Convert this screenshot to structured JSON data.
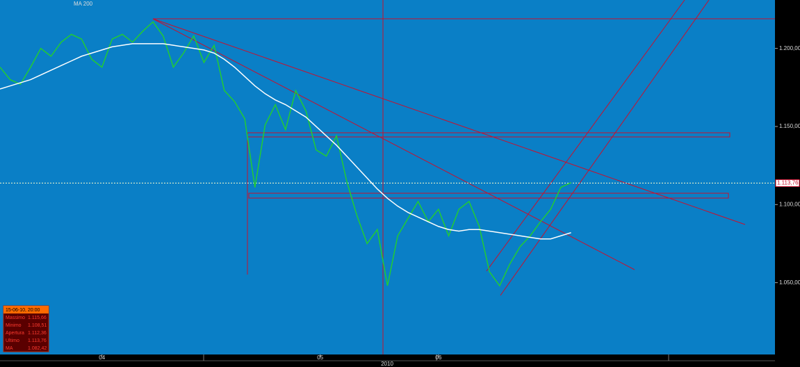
{
  "chart_data": {
    "type": "line",
    "xlim": [
      0,
      76
    ],
    "ylim": [
      1004,
      1231
    ],
    "xticks": [
      {
        "value": 10,
        "label": "04"
      },
      {
        "value": 31.4,
        "label": "05"
      },
      {
        "value": 43,
        "label": "06"
      }
    ],
    "year_label": "2010",
    "yticks": [
      {
        "value": 1050,
        "label": "1.050,00"
      },
      {
        "value": 1100,
        "label": "1.100,00"
      },
      {
        "value": 1150,
        "label": "1.150,00"
      },
      {
        "value": 1200,
        "label": "1.200,00"
      }
    ],
    "last_price": {
      "value": 1113.76,
      "label": "1.113,76"
    },
    "series": [
      {
        "color": "#22cc33",
        "values": [
          1188,
          1180,
          1177,
          1188,
          1200,
          1195,
          1204,
          1209,
          1206,
          1193,
          1188,
          1206,
          1209,
          1204,
          1211,
          1217,
          1208,
          1188,
          1197,
          1208,
          1191,
          1202,
          1173,
          1166,
          1155,
          1111,
          1151,
          1164,
          1148,
          1173,
          1160,
          1135,
          1131,
          1144,
          1115,
          1093,
          1075,
          1084,
          1048,
          1080,
          1091,
          1102,
          1089,
          1097,
          1080,
          1097,
          1102,
          1086,
          1057,
          1048,
          1062,
          1073,
          1080,
          1089,
          1097,
          1111,
          1114
        ]
      },
      {
        "name": "MA 200",
        "color": "#ffffff",
        "values": [
          1174,
          1176,
          1178,
          1180,
          1183,
          1186,
          1189,
          1192,
          1195,
          1197,
          1199,
          1201,
          1202,
          1203,
          1203,
          1203,
          1203,
          1202,
          1201,
          1200,
          1199,
          1197,
          1193,
          1188,
          1182,
          1176,
          1171,
          1167,
          1164,
          1160,
          1156,
          1150,
          1144,
          1138,
          1131,
          1124,
          1117,
          1110,
          1104,
          1099,
          1095,
          1092,
          1089,
          1086,
          1084,
          1083,
          1084,
          1084,
          1083,
          1082,
          1081,
          1080,
          1079,
          1078,
          1078,
          1080,
          1082
        ]
      }
    ]
  },
  "info_panel": {
    "date": "15-06-10, 20:00",
    "rows": [
      {
        "label": "Massimo",
        "value": "1.115,66"
      },
      {
        "label": "Minimo",
        "value": "1.108,51"
      },
      {
        "label": "Apertura",
        "value": "1.112,36"
      },
      {
        "label": "Ultimo",
        "value": "1.113,76"
      },
      {
        "label": "MA",
        "value": "1.082,42"
      }
    ]
  }
}
